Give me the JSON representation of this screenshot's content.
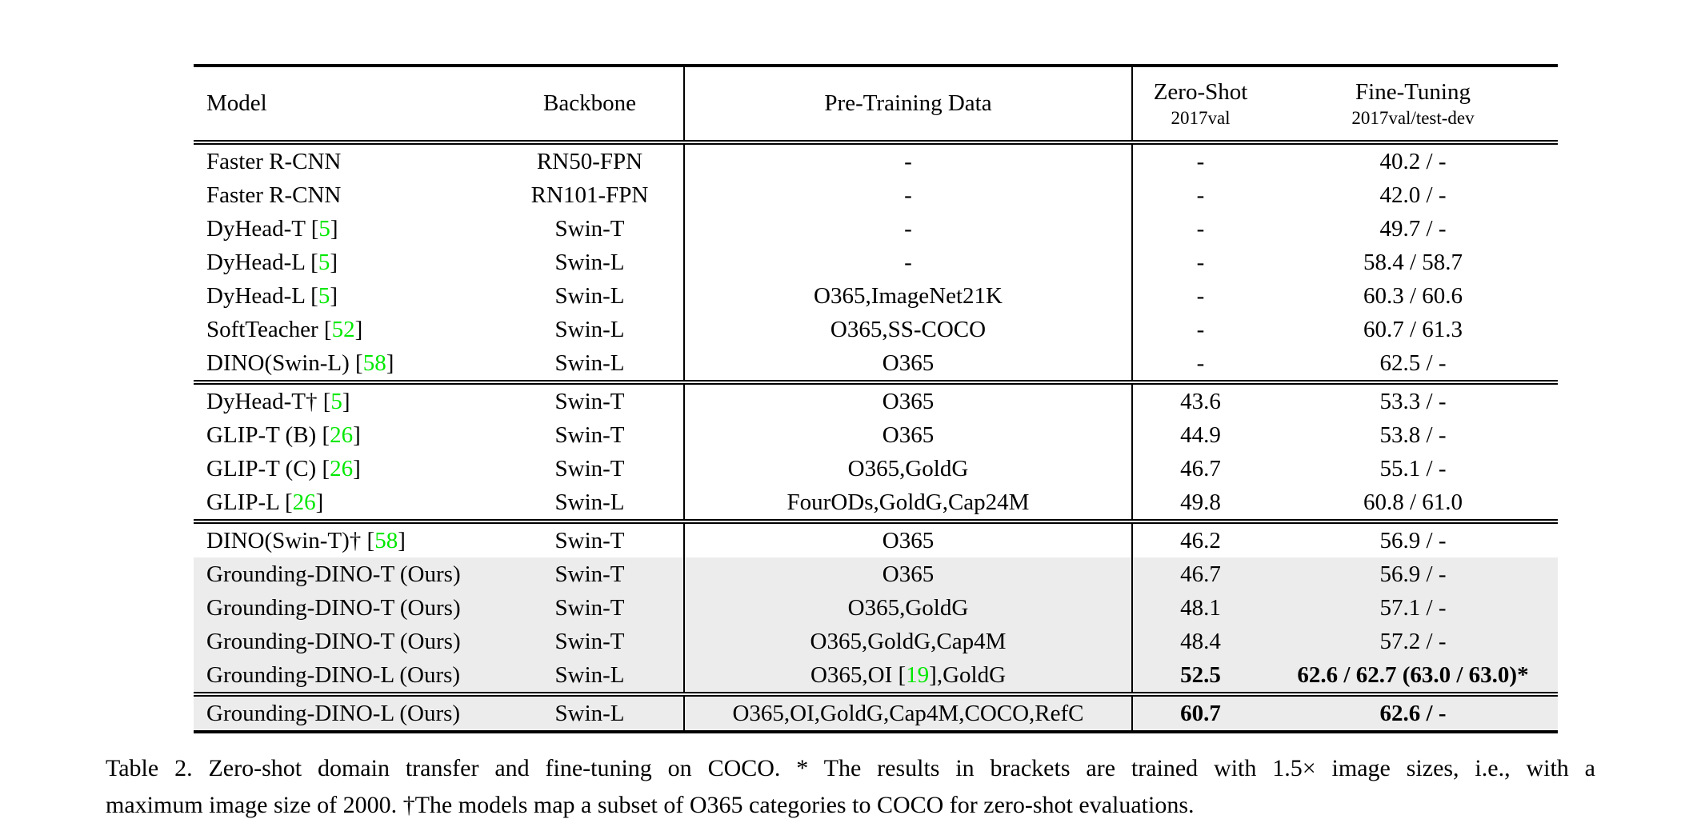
{
  "colors": {
    "citation_green": "#00E800",
    "row_highlight": "#ECECEC"
  },
  "table": {
    "header": {
      "model": "Model",
      "backbone": "Backbone",
      "pretraining": "Pre-Training Data",
      "zeroshot_title": "Zero-Shot",
      "zeroshot_sub": "2017val",
      "finetuning_title": "Fine-Tuning",
      "finetuning_sub": "2017val/test-dev"
    },
    "sections": [
      {
        "rows": [
          {
            "model": [
              {
                "t": "Faster R-CNN"
              }
            ],
            "backbone": "RN50-FPN",
            "pretrain": [
              {
                "t": "-"
              }
            ],
            "zs": "-",
            "ft": "40.2 / -"
          },
          {
            "model": [
              {
                "t": "Faster R-CNN"
              }
            ],
            "backbone": "RN101-FPN",
            "pretrain": [
              {
                "t": "-"
              }
            ],
            "zs": "-",
            "ft": "42.0 / -"
          },
          {
            "model": [
              {
                "t": "DyHead-T ["
              },
              {
                "t": "5",
                "cite": true
              },
              {
                "t": "]"
              }
            ],
            "backbone": "Swin-T",
            "pretrain": [
              {
                "t": "-"
              }
            ],
            "zs": "-",
            "ft": "49.7 / -"
          },
          {
            "model": [
              {
                "t": "DyHead-L ["
              },
              {
                "t": "5",
                "cite": true
              },
              {
                "t": "]"
              }
            ],
            "backbone": "Swin-L",
            "pretrain": [
              {
                "t": "-"
              }
            ],
            "zs": "-",
            "ft": "58.4 / 58.7"
          },
          {
            "model": [
              {
                "t": "DyHead-L ["
              },
              {
                "t": "5",
                "cite": true
              },
              {
                "t": "]"
              }
            ],
            "backbone": "Swin-L",
            "pretrain": [
              {
                "t": "O365,ImageNet21K"
              }
            ],
            "zs": "-",
            "ft": "60.3 / 60.6"
          },
          {
            "model": [
              {
                "t": "SoftTeacher ["
              },
              {
                "t": "52",
                "cite": true
              },
              {
                "t": "]"
              }
            ],
            "backbone": "Swin-L",
            "pretrain": [
              {
                "t": "O365,SS-COCO"
              }
            ],
            "zs": "-",
            "ft": "60.7 / 61.3"
          },
          {
            "model": [
              {
                "t": "DINO(Swin-L) ["
              },
              {
                "t": "58",
                "cite": true
              },
              {
                "t": "]"
              }
            ],
            "backbone": "Swin-L",
            "pretrain": [
              {
                "t": "O365"
              }
            ],
            "zs": "-",
            "ft": "62.5 / -"
          }
        ]
      },
      {
        "rows": [
          {
            "model": [
              {
                "t": "DyHead-T† ["
              },
              {
                "t": "5",
                "cite": true
              },
              {
                "t": "]"
              }
            ],
            "backbone": "Swin-T",
            "pretrain": [
              {
                "t": "O365"
              }
            ],
            "zs": "43.6",
            "ft": "53.3 / -"
          },
          {
            "model": [
              {
                "t": "GLIP-T (B) ["
              },
              {
                "t": "26",
                "cite": true
              },
              {
                "t": "]"
              }
            ],
            "backbone": "Swin-T",
            "pretrain": [
              {
                "t": "O365"
              }
            ],
            "zs": "44.9",
            "ft": "53.8 / -"
          },
          {
            "model": [
              {
                "t": "GLIP-T (C) ["
              },
              {
                "t": "26",
                "cite": true
              },
              {
                "t": "]"
              }
            ],
            "backbone": "Swin-T",
            "pretrain": [
              {
                "t": "O365,GoldG"
              }
            ],
            "zs": "46.7",
            "ft": "55.1 / -"
          },
          {
            "model": [
              {
                "t": "GLIP-L ["
              },
              {
                "t": "26",
                "cite": true
              },
              {
                "t": "]"
              }
            ],
            "backbone": "Swin-L",
            "pretrain": [
              {
                "t": "FourODs,GoldG,Cap24M"
              }
            ],
            "zs": "49.8",
            "ft": "60.8 / 61.0"
          }
        ]
      },
      {
        "rows": [
          {
            "model": [
              {
                "t": "DINO(Swin-T)† ["
              },
              {
                "t": "58",
                "cite": true
              },
              {
                "t": "]"
              }
            ],
            "backbone": "Swin-T",
            "pretrain": [
              {
                "t": "O365"
              }
            ],
            "zs": "46.2",
            "ft": "56.9 / -"
          },
          {
            "model": [
              {
                "t": "Grounding-DINO-T (Ours)"
              }
            ],
            "backbone": "Swin-T",
            "pretrain": [
              {
                "t": "O365"
              }
            ],
            "zs": "46.7",
            "ft": "56.9 / -",
            "hl": true
          },
          {
            "model": [
              {
                "t": "Grounding-DINO-T (Ours)"
              }
            ],
            "backbone": "Swin-T",
            "pretrain": [
              {
                "t": "O365,GoldG"
              }
            ],
            "zs": "48.1",
            "ft": "57.1 / -",
            "hl": true
          },
          {
            "model": [
              {
                "t": "Grounding-DINO-T (Ours)"
              }
            ],
            "backbone": "Swin-T",
            "pretrain": [
              {
                "t": "O365,GoldG,Cap4M"
              }
            ],
            "zs": "48.4",
            "ft": "57.2 / -",
            "hl": true
          },
          {
            "model": [
              {
                "t": "Grounding-DINO-L (Ours)"
              }
            ],
            "backbone": "Swin-L",
            "pretrain": [
              {
                "t": "O365,OI ["
              },
              {
                "t": "19",
                "cite": true
              },
              {
                "t": "],GoldG"
              }
            ],
            "zs": "52.5",
            "ft": "62.6 / 62.7 (63.0 / 63.0)*",
            "hl": true,
            "bold": true
          }
        ]
      },
      {
        "rows": [
          {
            "model": [
              {
                "t": "Grounding-DINO-L (Ours)"
              }
            ],
            "backbone": "Swin-L",
            "pretrain": [
              {
                "t": "O365,OI,GoldG,Cap4M,COCO,RefC"
              }
            ],
            "zs": "60.7",
            "ft": "62.6 / -",
            "hl": true,
            "bold": true
          }
        ]
      }
    ]
  },
  "caption": {
    "line1": "Table 2. Zero-shot domain transfer and fine-tuning on COCO. * The results in brackets are trained with 1.5× image sizes, i.e., with a",
    "line2": "maximum image size of 2000. †The models map a subset of O365 categories to COCO for zero-shot evaluations."
  }
}
